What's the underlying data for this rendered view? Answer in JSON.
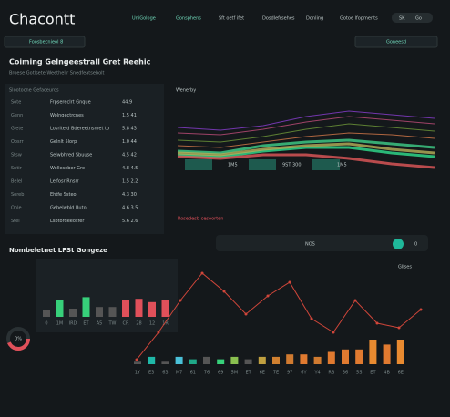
{
  "header": {
    "title": "Chacontt",
    "nav": [
      "UniGologe",
      "Gonsphens",
      "Sft oetf ifet",
      "Dosdlefrsehes",
      "Donling",
      "Gotoe lfopments"
    ],
    "buttons": [
      "SK",
      "Go"
    ]
  },
  "toolbar": {
    "left": "Foosbecnieol 8",
    "right": "Goneesd"
  },
  "section": {
    "title": "Coiming Gelngeestrall Gret Reehic",
    "subtitle": "Broese Gotlsete Weethelir Snedfeatsebolt"
  },
  "table": {
    "header": "Slootocne Gefaceuros",
    "rows": [
      [
        "Sote",
        "Frpsereclrt Gnque",
        "44.9"
      ],
      [
        "Genn",
        "Wolngectrcnes",
        "1.5 41"
      ],
      [
        "Glete",
        "Losriteld Bdereetnsmet to",
        "5.8 43"
      ],
      [
        "Oosrr",
        "Gelnlt 5lorp",
        "1.0 44"
      ],
      [
        "Stsw",
        "Selwbhred Sbuuse",
        "4.5 42"
      ],
      [
        "Sntir",
        "Welleseber Gre",
        "4.8 4.5"
      ],
      [
        "Belel",
        "Lelfosr Rnsrr",
        "1.5 2.2"
      ],
      [
        "Soreb",
        "Ehtfe Ssteo",
        "4.3 30"
      ],
      [
        "Ohle",
        "Gebelwbld Buto",
        "4.6 3.5"
      ],
      [
        "Stel",
        "Lsbtordeeosfer",
        "5.6 2.6"
      ]
    ]
  },
  "stream": {
    "title": "Wenerby",
    "series": [
      {
        "color": "#8a3fd1",
        "values": [
          30,
          33,
          28,
          18,
          12,
          16,
          20
        ]
      },
      {
        "color": "#c04e7a",
        "values": [
          36,
          38,
          32,
          24,
          18,
          22,
          26
        ]
      },
      {
        "color": "#6f9a3a",
        "values": [
          44,
          46,
          40,
          32,
          26,
          30,
          34
        ]
      },
      {
        "color": "#d77a4a",
        "values": [
          50,
          52,
          46,
          40,
          36,
          38,
          42
        ]
      },
      {
        "color": "#3fd18a",
        "values": [
          56,
          58,
          50,
          46,
          44,
          48,
          52
        ]
      },
      {
        "color": "#2fe08f",
        "values": [
          60,
          62,
          56,
          52,
          52,
          58,
          62
        ]
      },
      {
        "color": "#e2595a",
        "values": [
          62,
          64,
          60,
          60,
          64,
          70,
          74
        ]
      },
      {
        "color": "#b7b25a",
        "values": [
          58,
          60,
          54,
          50,
          48,
          54,
          58
        ]
      }
    ],
    "buttons": [
      "1M5",
      "9ST 300",
      "1M5"
    ],
    "alert": "Rosedesb cesoorten"
  },
  "player": {
    "label": "NOS",
    "badge": "0"
  },
  "bottom": {
    "title": "Nombeletnet LFSt Gongeze",
    "legend": "Gllses",
    "donut": "0%",
    "bars1": {
      "categories": [
        "0",
        "1M",
        "IRD",
        "ET",
        "A5",
        "TW",
        "CR",
        "28",
        "12",
        "1R"
      ],
      "values": [
        4,
        10,
        5,
        12,
        6,
        6,
        10,
        11,
        9,
        10
      ],
      "colors": [
        "#555",
        "#37d07a",
        "#555",
        "#37d07a",
        "#555",
        "#555",
        "#e0505a",
        "#e0505a",
        "#e0505a",
        "#e0505a"
      ]
    },
    "bars2": {
      "categories": [
        "1Y",
        "E3",
        "63",
        "M7",
        "61",
        "76",
        "69",
        "5M",
        "ET",
        "6E",
        "7E",
        "97",
        "6Y",
        "Y4",
        "RB",
        "36",
        "5S",
        "ET",
        "4B",
        "6E"
      ],
      "values": [
        1,
        3,
        1,
        3,
        2,
        3,
        2,
        3,
        2,
        3,
        3,
        4,
        4,
        3,
        5,
        6,
        6,
        10,
        8,
        10
      ],
      "colors": [
        "#555",
        "#1fb8a8",
        "#555",
        "#4ac0d8",
        "#1fa888",
        "#555",
        "#37d07a",
        "#8ac050",
        "#555",
        "#c0a040",
        "#d08030",
        "#d07a30",
        "#e07a30",
        "#d07a30",
        "#e07a30",
        "#e07a30",
        "#e07a30",
        "#e88a30",
        "#e07a30",
        "#e88a30"
      ]
    },
    "line": {
      "color": "#d0463a",
      "values": [
        2,
        14,
        28,
        40,
        32,
        22,
        30,
        36,
        20,
        14,
        28,
        18,
        16,
        24
      ]
    }
  }
}
